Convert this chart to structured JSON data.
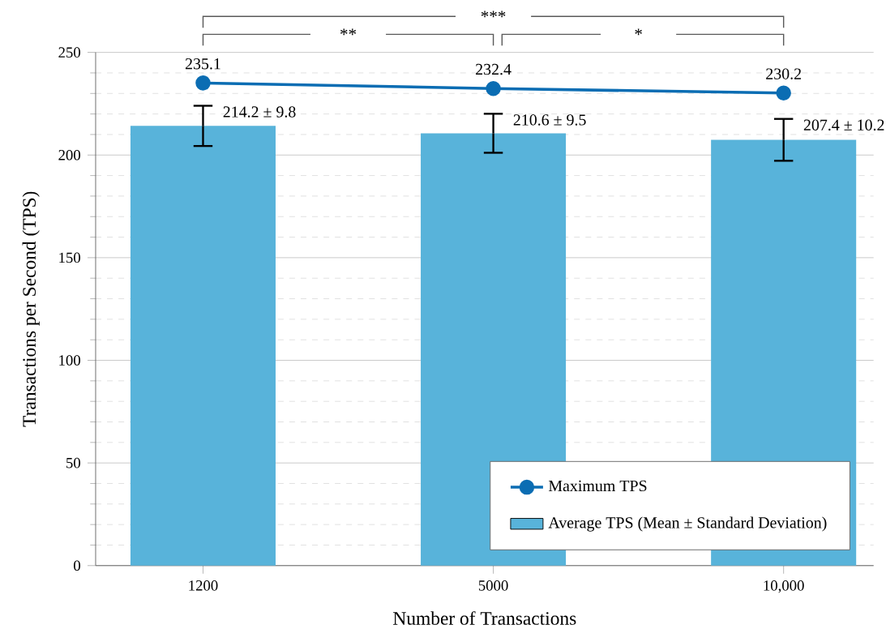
{
  "chart_data": {
    "type": "bar",
    "xlabel": "Number of Transactions",
    "ylabel": "Transactions per Second (TPS)",
    "categories": [
      "1200",
      "5000",
      "10,000"
    ],
    "series": [
      {
        "name": "Average TPS (Mean ± Standard Deviation)",
        "color": "#58b3da",
        "values": [
          214.2,
          210.6,
          207.4
        ],
        "errors": [
          9.8,
          9.5,
          10.2
        ],
        "value_labels": [
          "214.2 ± 9.8",
          "210.6 ± 9.5",
          "207.4 ± 10.2"
        ]
      },
      {
        "type": "line",
        "name": "Maximum TPS",
        "color": "#0b6db3",
        "values": [
          235.1,
          232.4,
          230.2
        ],
        "value_labels": [
          "235.1",
          "232.4",
          "230.2"
        ],
        "marker": "circle"
      }
    ],
    "ylim": [
      0,
      250
    ],
    "yticks": [
      0,
      50,
      100,
      150,
      200,
      250
    ],
    "grid": "y",
    "legend": "bottom right",
    "annotations": [
      "***",
      "**",
      "*"
    ]
  }
}
